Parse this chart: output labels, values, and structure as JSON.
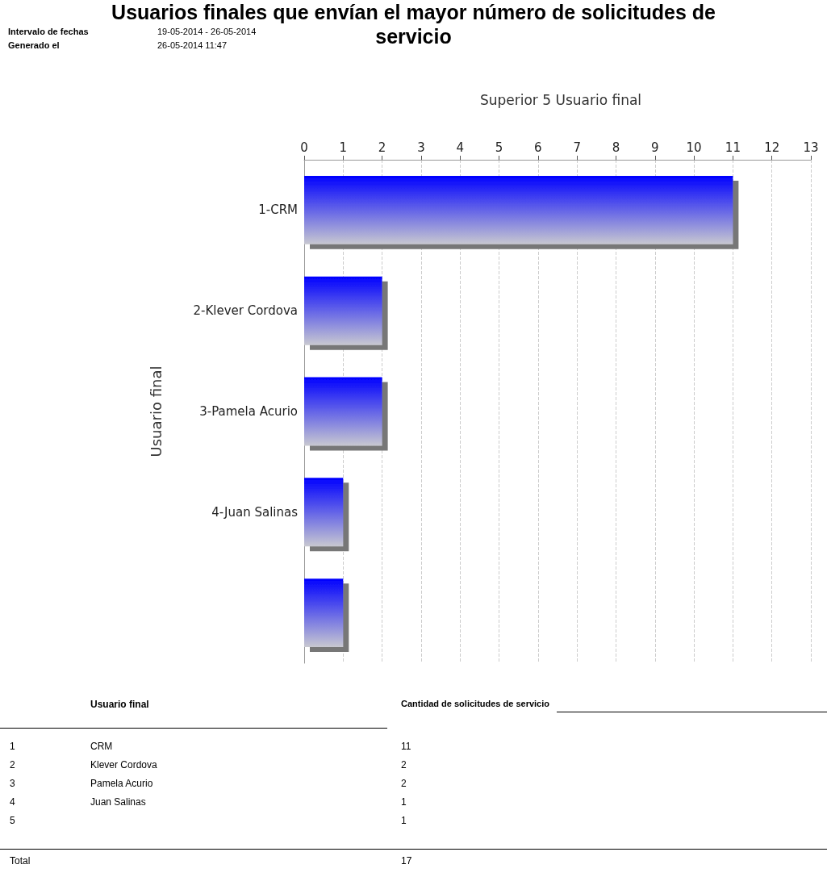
{
  "chart_data": {
    "type": "bar",
    "orientation": "horizontal",
    "title": "Usuarios finales que envían el mayor número de solicitudes de servicio",
    "subtitle": "Superior 5 Usuario final",
    "ylabel": "Usuario final",
    "categories": [
      "1-CRM",
      "2-Klever Cordova",
      "3-Pamela Acurio",
      "4-Juan Salinas",
      null
    ],
    "values": [
      11,
      2,
      2,
      1,
      1
    ],
    "color": "#0000ff",
    "xlim": [
      0,
      13
    ],
    "xticks": [
      0,
      1,
      2,
      3,
      4,
      5,
      6,
      7,
      8,
      9,
      10,
      11,
      12,
      13
    ],
    "grid": "x",
    "annotations": [
      "Intervalo de fechas",
      "19-05-2014 - 26-05-2014",
      "Generado el",
      "26-05-2014 11:47",
      "Usuario final",
      "Cantidad de solicitudes de servicio",
      "1",
      "2",
      "3",
      "4",
      "5",
      "CRM",
      "Klever Cordova",
      "Pamela Acurio",
      "Juan Salinas",
      "11",
      "2",
      "2",
      "1",
      "1",
      "Total",
      "17"
    ]
  }
}
